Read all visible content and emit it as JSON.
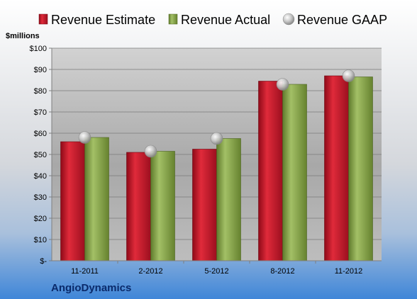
{
  "chart_data": {
    "type": "bar",
    "unit_label": "$millions",
    "company": "AngioDynamics",
    "categories": [
      "11-2011",
      "2-2012",
      "5-2012",
      "8-2012",
      "11-2012"
    ],
    "ylim": [
      0,
      100
    ],
    "y_ticks": [
      0,
      10,
      20,
      30,
      40,
      50,
      60,
      70,
      80,
      90,
      100
    ],
    "y_tick_labels": [
      "$-",
      "$10",
      "$20",
      "$30",
      "$40",
      "$50",
      "$60",
      "$70",
      "$80",
      "$90",
      "$100"
    ],
    "grid": true,
    "legend_position": "top",
    "series": [
      {
        "name": "Revenue Estimate",
        "kind": "bar",
        "color": "#c8102e",
        "values": [
          56,
          51,
          52.5,
          84.5,
          87
        ]
      },
      {
        "name": "Revenue Actual",
        "kind": "bar",
        "color": "#8aa84a",
        "values": [
          58,
          51.5,
          57.5,
          83,
          86.5
        ]
      },
      {
        "name": "Revenue GAAP",
        "kind": "marker",
        "color": "#b8b8b8",
        "values": [
          58,
          51.5,
          57.5,
          83,
          87
        ]
      }
    ]
  }
}
